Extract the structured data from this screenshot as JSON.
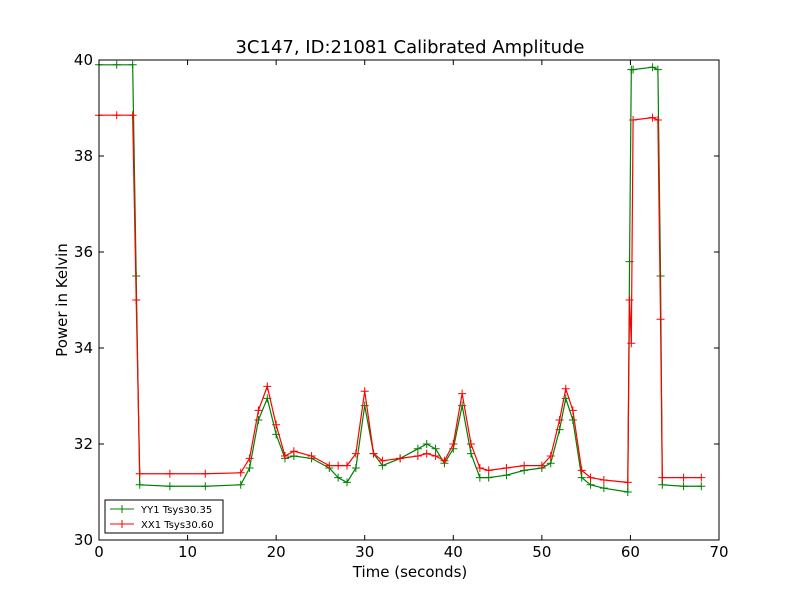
{
  "chart_data": {
    "type": "line",
    "title": "3C147, ID:21081 Calibrated Amplitude",
    "xlabel": "Time (seconds)",
    "ylabel": "Power in Kelvin",
    "xlim": [
      0,
      70
    ],
    "ylim": [
      30,
      40
    ],
    "xticks": [
      "0",
      "10",
      "20",
      "30",
      "40",
      "50",
      "60",
      "70"
    ],
    "yticks": [
      "30",
      "32",
      "34",
      "36",
      "38",
      "40"
    ],
    "grid": false,
    "legend_position": "lower-left",
    "marker": "plus",
    "series": [
      {
        "name": "YY1 Tsys30.35",
        "color": "#008000",
        "x": [
          0,
          2,
          3.8,
          4.2,
          4.6,
          8,
          12,
          16,
          17,
          18,
          19,
          20,
          21,
          22,
          24,
          26,
          27,
          28,
          29,
          30,
          31,
          32,
          34,
          36,
          37,
          38,
          39,
          40,
          41,
          42,
          43,
          44,
          46,
          48,
          50,
          51,
          52,
          52.7,
          53.5,
          54.5,
          55.5,
          57,
          59.7,
          59.9,
          60.1,
          60.3,
          62.5,
          63.1,
          63.4,
          63.6,
          66,
          68
        ],
        "y": [
          39.9,
          39.9,
          39.9,
          35.5,
          31.15,
          31.12,
          31.12,
          31.15,
          31.5,
          32.5,
          32.95,
          32.2,
          31.7,
          31.75,
          31.7,
          31.5,
          31.3,
          31.2,
          31.5,
          32.8,
          31.8,
          31.55,
          31.7,
          31.9,
          32.0,
          31.9,
          31.6,
          31.9,
          32.8,
          31.8,
          31.3,
          31.3,
          31.35,
          31.45,
          31.5,
          31.6,
          32.3,
          32.95,
          32.5,
          31.3,
          31.15,
          31.08,
          31.0,
          35.8,
          39.8,
          39.8,
          39.85,
          39.8,
          35.5,
          31.15,
          31.12,
          31.12
        ]
      },
      {
        "name": "XX1 Tsys30.60",
        "color": "#ff0000",
        "x": [
          0,
          2,
          3.8,
          4.2,
          4.6,
          8,
          12,
          16,
          17,
          18,
          19,
          20,
          21,
          22,
          24,
          26,
          27,
          28,
          29,
          30,
          31,
          32,
          34,
          36,
          37,
          38,
          39,
          40,
          41,
          42,
          43,
          44,
          46,
          48,
          50,
          51,
          52,
          52.7,
          53.5,
          54.5,
          55.5,
          57,
          59.7,
          59.9,
          60.1,
          60.3,
          62.5,
          63.1,
          63.4,
          63.6,
          66,
          68
        ],
        "y": [
          38.85,
          38.85,
          38.85,
          35.0,
          31.38,
          31.38,
          31.38,
          31.4,
          31.7,
          32.7,
          33.2,
          32.4,
          31.75,
          31.85,
          31.75,
          31.55,
          31.55,
          31.55,
          31.8,
          33.1,
          31.8,
          31.65,
          31.7,
          31.75,
          31.8,
          31.75,
          31.65,
          32.0,
          33.05,
          32.0,
          31.5,
          31.45,
          31.5,
          31.55,
          31.55,
          31.75,
          32.5,
          33.15,
          32.7,
          31.45,
          31.3,
          31.25,
          31.2,
          35.0,
          34.1,
          38.75,
          38.8,
          38.75,
          34.6,
          31.3,
          31.3,
          31.3
        ]
      }
    ]
  }
}
